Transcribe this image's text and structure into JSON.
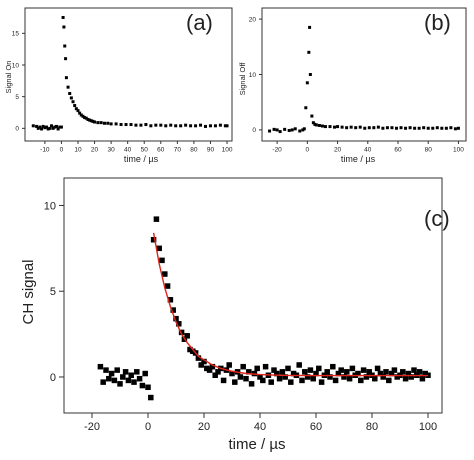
{
  "chart_data": [
    {
      "panel_label": "(a)",
      "type": "scatter",
      "xlabel": "time / µs",
      "ylabel": "Signal On",
      "xlim": [
        -22,
        103
      ],
      "ylim": [
        -2,
        19
      ],
      "xticks": [
        -10,
        0,
        10,
        20,
        30,
        40,
        50,
        60,
        70,
        80,
        90,
        100
      ],
      "xtick_labels": [
        "-10",
        "0",
        "10",
        "20",
        "30",
        "40",
        "50",
        "60",
        "70",
        "80",
        "90",
        "100"
      ],
      "yticks": [
        0,
        5,
        10,
        15
      ],
      "ytick_labels": [
        "0",
        "5",
        "10",
        "15"
      ],
      "grid": false,
      "series": [
        {
          "marker": "square",
          "color": "#000000",
          "x": [
            -17,
            -15,
            -14,
            -13,
            -12,
            -11,
            -10,
            -9,
            -8,
            -7,
            -6,
            -5,
            -4,
            -3,
            -2,
            -1,
            0,
            1,
            1.5,
            2,
            2.5,
            3,
            4,
            5,
            6,
            7,
            8,
            9,
            10,
            11,
            12,
            13,
            14,
            15,
            16,
            17,
            18,
            19,
            20,
            22,
            24,
            26,
            28,
            30,
            33,
            36,
            39,
            42,
            45,
            48,
            51,
            54,
            57,
            60,
            63,
            66,
            69,
            72,
            75,
            78,
            81,
            84,
            87,
            90,
            93,
            96,
            99,
            100
          ],
          "y": [
            0.4,
            0.3,
            0.0,
            0.2,
            -0.1,
            0.3,
            0.1,
            0.2,
            -0.1,
            0.0,
            0.4,
            0.0,
            0.2,
            0.3,
            -0.1,
            0.2,
            0.2,
            17.5,
            16.0,
            13.0,
            11.0,
            8.0,
            6.5,
            5.5,
            4.8,
            4.2,
            3.6,
            3.1,
            2.8,
            2.4,
            2.1,
            1.9,
            1.7,
            1.6,
            1.4,
            1.3,
            1.2,
            1.1,
            1.0,
            0.9,
            0.9,
            0.8,
            0.8,
            0.7,
            0.7,
            0.6,
            0.6,
            0.6,
            0.5,
            0.5,
            0.6,
            0.4,
            0.5,
            0.5,
            0.4,
            0.5,
            0.4,
            0.4,
            0.5,
            0.4,
            0.4,
            0.5,
            0.3,
            0.4,
            0.4,
            0.5,
            0.4,
            0.4
          ]
        }
      ]
    },
    {
      "panel_label": "(b)",
      "type": "scatter",
      "xlabel": "time / µs",
      "ylabel": "Signal Off",
      "xlim": [
        -30,
        105
      ],
      "ylim": [
        -2,
        22
      ],
      "xticks": [
        -20,
        0,
        20,
        40,
        60,
        80,
        100
      ],
      "xtick_labels": [
        "-20",
        "0",
        "20",
        "40",
        "60",
        "80",
        "100"
      ],
      "yticks": [
        0,
        10,
        20
      ],
      "ytick_labels": [
        "0",
        "10",
        "20"
      ],
      "grid": false,
      "series": [
        {
          "marker": "square",
          "color": "#000000",
          "x": [
            -25,
            -22,
            -20,
            -18,
            -15,
            -12,
            -10,
            -8,
            -5,
            -3,
            -2,
            -1,
            0,
            1,
            1.5,
            2,
            3,
            4,
            5,
            6,
            8,
            10,
            12,
            15,
            18,
            20,
            23,
            26,
            29,
            32,
            35,
            38,
            41,
            44,
            47,
            50,
            53,
            56,
            59,
            62,
            65,
            68,
            71,
            74,
            77,
            80,
            83,
            86,
            89,
            92,
            95,
            98,
            100
          ],
          "y": [
            -0.2,
            0.1,
            0.0,
            -0.3,
            0.1,
            -0.1,
            0.0,
            0.2,
            -0.2,
            0.0,
            0.2,
            4.0,
            8.5,
            14.0,
            18.5,
            10.0,
            2.5,
            1.3,
            1.0,
            0.9,
            0.8,
            0.7,
            0.6,
            0.6,
            0.5,
            0.6,
            0.5,
            0.4,
            0.5,
            0.4,
            0.5,
            0.3,
            0.4,
            0.4,
            0.5,
            0.3,
            0.4,
            0.4,
            0.3,
            0.4,
            0.3,
            0.4,
            0.3,
            0.3,
            0.4,
            0.3,
            0.3,
            0.4,
            0.3,
            0.3,
            0.4,
            0.2,
            0.3
          ]
        }
      ]
    },
    {
      "panel_label": "(c)",
      "type": "scatter",
      "xlabel": "time / µs",
      "ylabel": "CH signal",
      "xlim": [
        -30,
        105
      ],
      "ylim": [
        -2.1,
        11.6
      ],
      "xticks": [
        -20,
        0,
        20,
        40,
        60,
        80,
        100
      ],
      "xtick_labels": [
        "-20",
        "0",
        "20",
        "40",
        "60",
        "80",
        "100"
      ],
      "yticks": [
        0,
        5,
        10
      ],
      "ytick_labels": [
        "0",
        "5",
        "10"
      ],
      "grid": false,
      "series": [
        {
          "marker": "square",
          "color": "#000000",
          "x": [
            -17,
            -16,
            -15,
            -14,
            -13,
            -12,
            -11,
            -10,
            -9,
            -8,
            -7,
            -6,
            -5,
            -4,
            -3,
            -2,
            -1,
            0,
            1,
            2,
            3,
            4,
            5,
            6,
            7,
            8,
            9,
            10,
            11,
            12,
            13,
            14,
            15,
            16,
            17,
            18,
            19,
            20,
            21,
            22,
            23,
            24,
            25,
            26,
            27,
            28,
            29,
            30,
            31,
            32,
            33,
            34,
            35,
            36,
            37,
            38,
            39,
            40,
            41,
            42,
            43,
            44,
            45,
            46,
            47,
            48,
            49,
            50,
            51,
            52,
            53,
            54,
            55,
            56,
            57,
            58,
            59,
            60,
            61,
            62,
            63,
            64,
            65,
            66,
            67,
            68,
            69,
            70,
            71,
            72,
            73,
            74,
            75,
            76,
            77,
            78,
            79,
            80,
            81,
            82,
            83,
            84,
            85,
            86,
            87,
            88,
            89,
            90,
            91,
            92,
            93,
            94,
            95,
            96,
            97,
            98,
            99,
            100
          ],
          "y": [
            0.6,
            -0.3,
            0.4,
            -0.1,
            0.2,
            -0.2,
            0.4,
            -0.4,
            0.0,
            0.3,
            -0.2,
            0.1,
            -0.3,
            0.3,
            -0.1,
            -0.5,
            0.2,
            -0.6,
            -1.2,
            8.0,
            9.2,
            7.5,
            6.8,
            6.0,
            5.3,
            4.5,
            3.9,
            3.4,
            3.1,
            2.6,
            2.2,
            2.4,
            1.6,
            1.5,
            1.4,
            1.1,
            0.7,
            0.9,
            0.5,
            0.4,
            0.6,
            0.1,
            0.3,
            0.5,
            -0.2,
            0.4,
            0.7,
            0.2,
            -0.3,
            0.3,
            0.0,
            0.6,
            -0.1,
            0.3,
            -0.4,
            0.2,
            0.5,
            0.0,
            -0.2,
            0.6,
            0.1,
            -0.3,
            0.4,
            0.2,
            -0.1,
            0.3,
            0.0,
            0.5,
            -0.3,
            0.2,
            0.1,
            0.7,
            -0.2,
            0.3,
            0.0,
            0.4,
            -0.1,
            0.2,
            0.5,
            -0.3,
            0.1,
            0.3,
            0.0,
            0.6,
            -0.2,
            0.2,
            0.4,
            0.0,
            0.3,
            -0.1,
            0.5,
            0.1,
            0.2,
            -0.2,
            0.4,
            0.0,
            0.3,
            0.1,
            -0.1,
            0.5,
            0.2,
            0.0,
            0.3,
            -0.2,
            0.2,
            0.4,
            0.0,
            0.1,
            0.3,
            -0.1,
            0.2,
            0.0,
            0.4,
            0.1,
            0.3,
            -0.1,
            0.2,
            0.1
          ]
        },
        {
          "type": "line",
          "color": "#e0241b",
          "x": [
            2,
            4,
            6,
            8,
            10,
            12,
            14,
            16,
            18,
            20,
            23,
            26,
            30,
            35,
            40,
            45,
            50,
            60,
            70,
            80,
            90,
            100
          ],
          "y": [
            8.4,
            6.6,
            5.2,
            4.1,
            3.2,
            2.5,
            2.0,
            1.6,
            1.2,
            1.0,
            0.7,
            0.5,
            0.33,
            0.2,
            0.14,
            0.11,
            0.09,
            0.08,
            0.08,
            0.08,
            0.08,
            0.08
          ]
        }
      ]
    }
  ]
}
